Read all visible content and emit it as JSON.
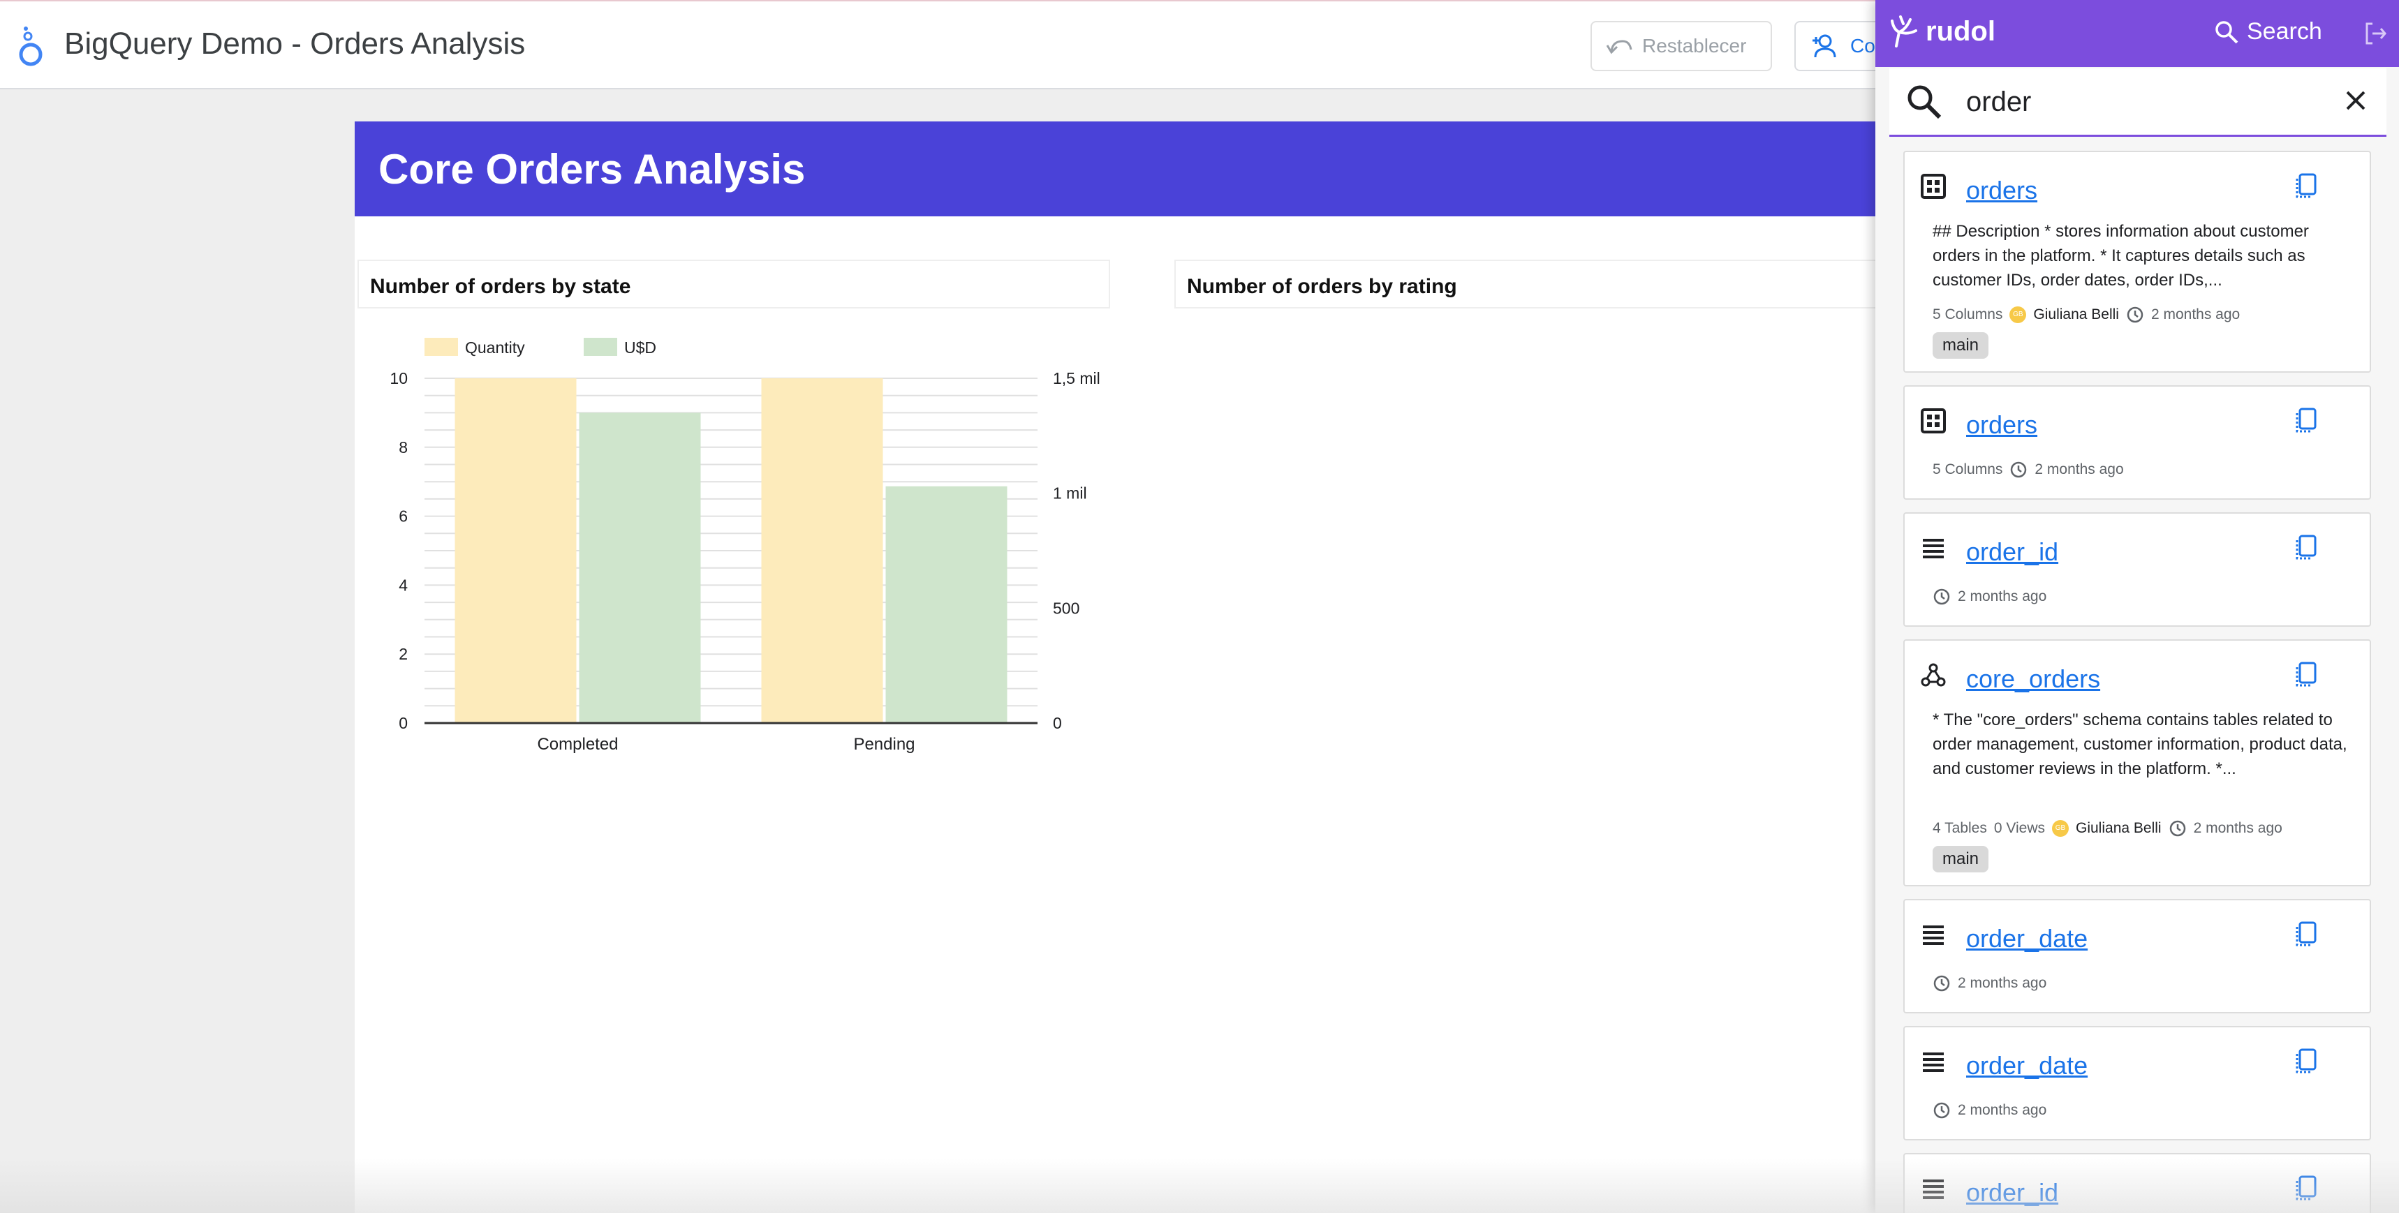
{
  "app": {
    "title": "BigQuery Demo - Orders Analysis",
    "reset_label": "Restablecer",
    "share_label": "Co"
  },
  "report": {
    "title": "Core Orders Analysis",
    "panel_left_title": "Number of orders by state",
    "panel_right_title": "Number of orders by rating"
  },
  "chart_data": {
    "type": "bar",
    "title": "Number of orders by state",
    "categories": [
      "Completed",
      "Pending"
    ],
    "series": [
      {
        "name": "Quantity",
        "axis": "left",
        "values": [
          10,
          10
        ],
        "color": "#fdebbb"
      },
      {
        "name": "U$D",
        "axis": "right",
        "values": [
          1350,
          1030
        ],
        "color": "#cfe5cc"
      }
    ],
    "y_left": {
      "min": 0,
      "max": 10,
      "ticks": [
        "0",
        "2",
        "4",
        "6",
        "8",
        "10"
      ]
    },
    "y_right": {
      "min": 0,
      "max": 1500,
      "ticks": [
        "0",
        "500",
        "1 mil",
        "1,5 mil"
      ]
    },
    "grid": true,
    "legend": "top-left"
  },
  "rudol": {
    "brand": "rudol",
    "search_label": "Search",
    "search_value": "order",
    "results": [
      {
        "type": "table",
        "title": "orders",
        "desc": "## Description * stores information about customer orders in the platform. * It captures details such as customer IDs, order dates, order IDs,...",
        "count": "5 Columns",
        "owner": "Giuliana Belli",
        "avatar": "GB",
        "time": "2 months ago",
        "tag": "main"
      },
      {
        "type": "table",
        "title": "orders",
        "count": "5 Columns",
        "time": "2 months ago"
      },
      {
        "type": "column",
        "title": "order_id",
        "time": "2 months ago"
      },
      {
        "type": "schema",
        "title": "core_orders",
        "desc": "* The \"core_orders\" schema contains tables related to order management, customer information, product data, and customer reviews in the platform. *...",
        "count": "4 Tables",
        "views": "0 Views",
        "owner": "Giuliana Belli",
        "avatar": "GB",
        "time": "2 months ago",
        "tag": "main"
      },
      {
        "type": "column",
        "title": "order_date",
        "time": "2 months ago"
      },
      {
        "type": "column",
        "title": "order_date",
        "time": "2 months ago"
      },
      {
        "type": "column",
        "title": "order_id"
      }
    ]
  }
}
